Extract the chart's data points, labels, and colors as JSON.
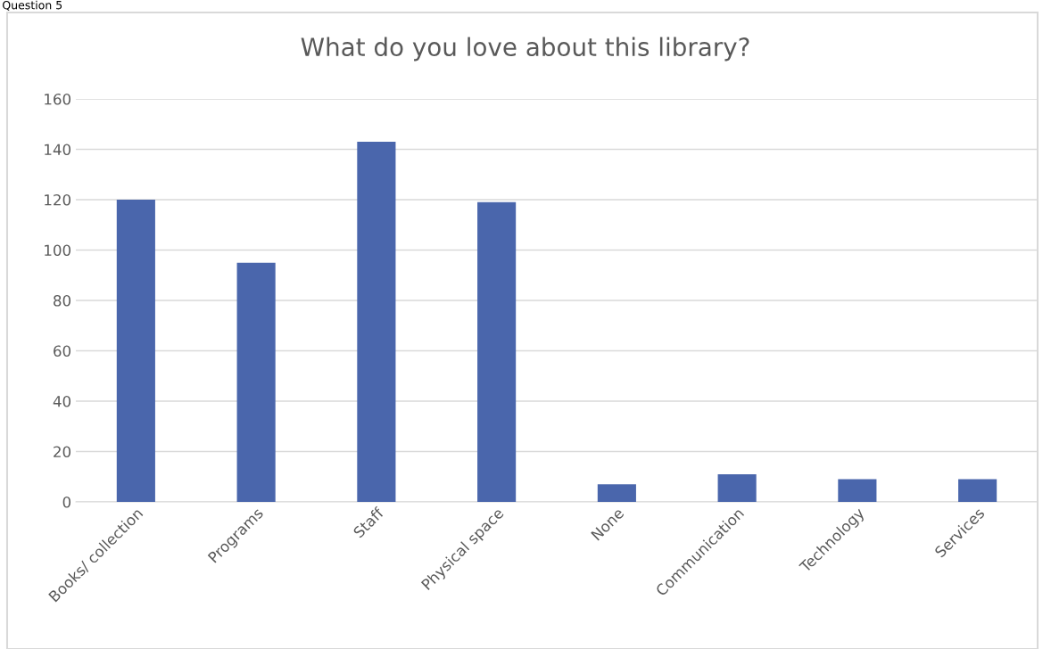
{
  "chart_data": {
    "type": "bar",
    "title": "What do you love about this library?",
    "annotations": [
      "Question 5"
    ],
    "categories": [
      "Books/ collection",
      "Programs",
      "Staff",
      "Physical space",
      "None",
      "Communication",
      "Technology",
      "Services"
    ],
    "values": [
      120,
      95,
      143,
      119,
      7,
      11,
      9,
      9
    ],
    "color": "#4a66ac",
    "ylim": [
      0,
      160
    ],
    "yticks": [
      0,
      20,
      40,
      60,
      80,
      100,
      120,
      140,
      160
    ],
    "grid": "y",
    "legend": false
  }
}
